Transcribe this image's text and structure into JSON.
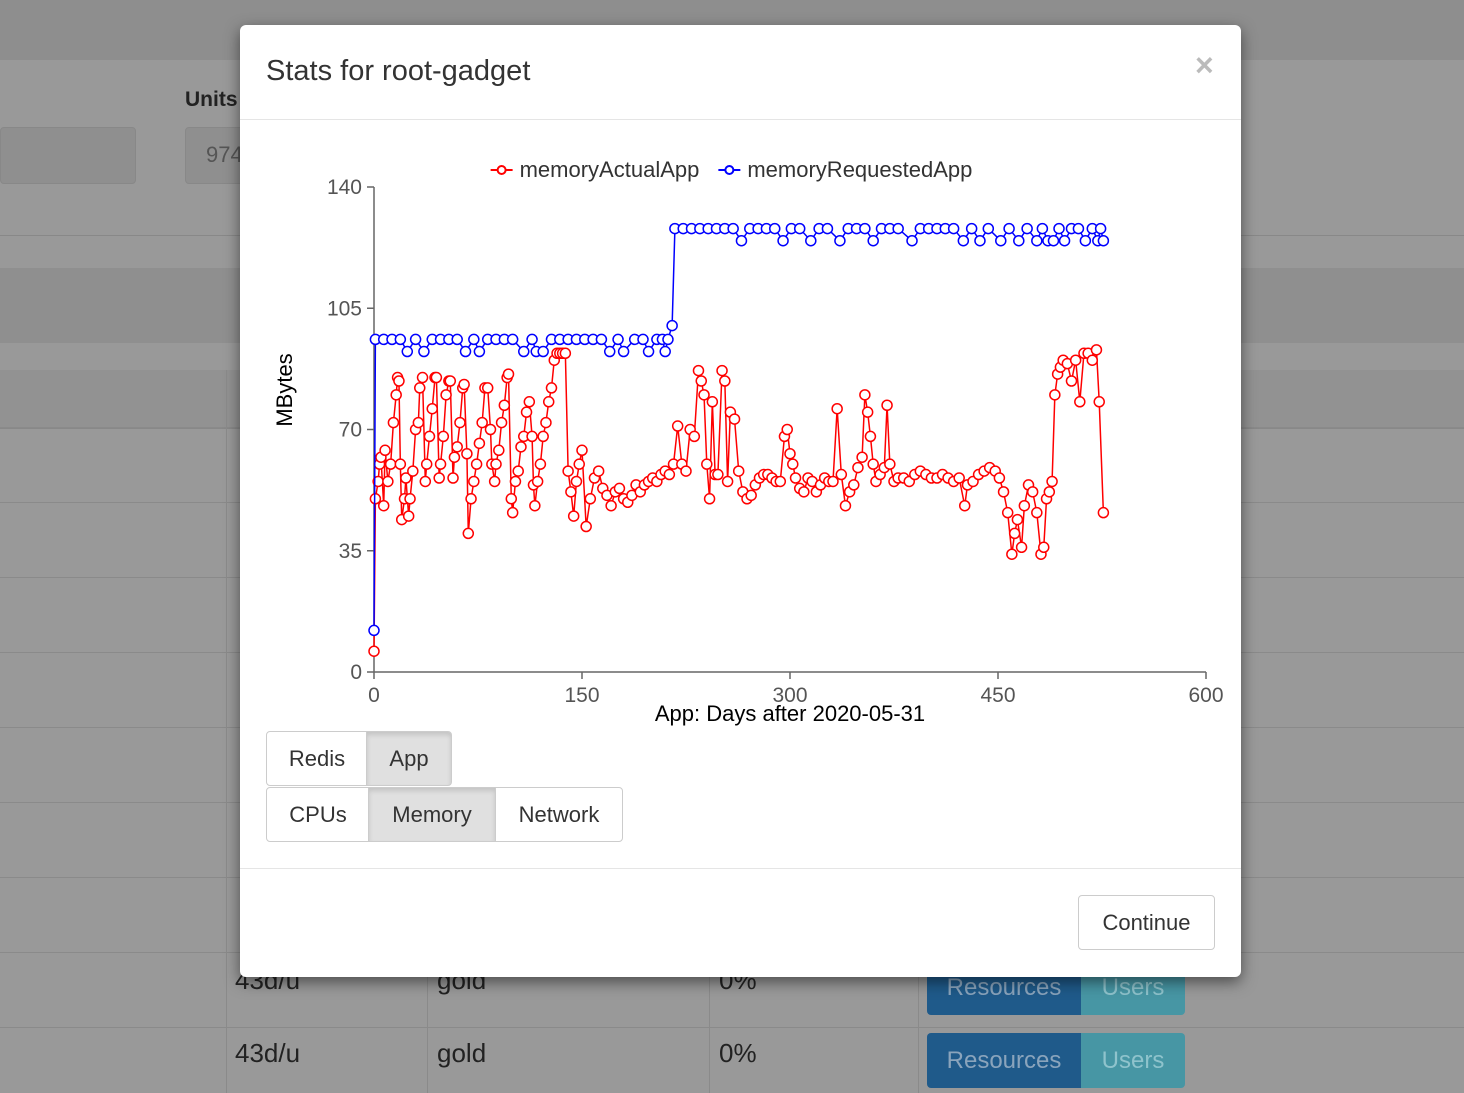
{
  "background": {
    "units_label": "Units",
    "units_value": "974",
    "rows": [
      [
        "43d/u",
        "gold",
        "0%",
        "Resources",
        "Users"
      ],
      [
        "43d/u",
        "gold",
        "0%",
        "Resources",
        "Users"
      ]
    ]
  },
  "modal": {
    "title": "Stats for root-gadget",
    "close": "×",
    "source_buttons": [
      "Redis",
      "App"
    ],
    "active_source": 1,
    "metric_buttons": [
      "CPUs",
      "Memory",
      "Network"
    ],
    "active_metric": 1,
    "continue": "Continue"
  },
  "chart_data": {
    "type": "line",
    "xlabel": "App: Days after 2020-05-31",
    "ylabel": "MBytes",
    "xlim": [
      0,
      600
    ],
    "xticks": [
      0,
      150,
      300,
      450,
      600
    ],
    "ylim": [
      0,
      140
    ],
    "yticks": [
      0,
      35,
      70,
      105,
      140
    ],
    "series": [
      {
        "name": "memoryActualApp",
        "color": "#ff0000",
        "x": [
          0,
          1,
          3,
          4,
          5,
          7,
          8,
          10,
          12,
          14,
          16,
          17,
          18,
          19,
          20,
          22,
          23,
          25,
          26,
          28,
          30,
          32,
          33,
          35,
          37,
          38,
          40,
          42,
          44,
          45,
          47,
          48,
          50,
          52,
          54,
          55,
          57,
          58,
          60,
          62,
          64,
          65,
          67,
          68,
          70,
          72,
          74,
          76,
          78,
          80,
          82,
          84,
          85,
          87,
          88,
          90,
          92,
          94,
          96,
          97,
          99,
          100,
          102,
          104,
          106,
          108,
          110,
          112,
          114,
          115,
          116,
          118,
          120,
          122,
          124,
          126,
          128,
          130,
          132,
          134,
          136,
          138,
          140,
          142,
          144,
          146,
          148,
          150,
          153,
          156,
          159,
          162,
          165,
          168,
          171,
          174,
          177,
          180,
          183,
          186,
          189,
          192,
          195,
          198,
          201,
          204,
          207,
          210,
          213,
          216,
          219,
          222,
          225,
          228,
          231,
          234,
          236,
          238,
          240,
          242,
          244,
          246,
          248,
          251,
          253,
          255,
          257,
          260,
          263,
          266,
          269,
          272,
          275,
          278,
          281,
          284,
          287,
          290,
          293,
          296,
          298,
          300,
          302,
          304,
          307,
          310,
          313,
          316,
          319,
          322,
          325,
          328,
          331,
          334,
          337,
          340,
          343,
          346,
          349,
          352,
          354,
          356,
          358,
          360,
          362,
          365,
          368,
          370,
          372,
          375,
          378,
          382,
          386,
          390,
          394,
          398,
          402,
          406,
          410,
          414,
          418,
          422,
          426,
          428,
          432,
          436,
          440,
          444,
          448,
          451,
          454,
          457,
          460,
          462,
          464,
          467,
          469,
          472,
          475,
          478,
          481,
          483,
          485,
          487,
          489,
          491,
          493,
          495,
          497,
          500,
          503,
          506,
          509,
          512,
          515,
          518,
          521,
          523,
          526
        ],
        "values": [
          6,
          50,
          55,
          60,
          62,
          48,
          64,
          55,
          60,
          72,
          80,
          85,
          84,
          60,
          44,
          50,
          56,
          45,
          50,
          58,
          70,
          72,
          82,
          85,
          55,
          60,
          68,
          76,
          85,
          85,
          56,
          60,
          68,
          80,
          84,
          84,
          56,
          62,
          65,
          72,
          82,
          83,
          63,
          40,
          50,
          55,
          60,
          66,
          72,
          82,
          82,
          70,
          60,
          55,
          60,
          64,
          72,
          77,
          85,
          86,
          50,
          46,
          55,
          58,
          65,
          68,
          75,
          78,
          68,
          54,
          48,
          55,
          60,
          68,
          72,
          78,
          82,
          90,
          92,
          92,
          92,
          92,
          58,
          52,
          45,
          55,
          60,
          64,
          42,
          50,
          56,
          58,
          53,
          51,
          48,
          52,
          53,
          50,
          49,
          51,
          54,
          52,
          54,
          55,
          56,
          55,
          57,
          58,
          57,
          60,
          71,
          60,
          58,
          70,
          68,
          87,
          84,
          80,
          60,
          50,
          78,
          57,
          57,
          87,
          84,
          55,
          75,
          73,
          58,
          52,
          50,
          51,
          54,
          56,
          57,
          57,
          56,
          55,
          55,
          68,
          70,
          63,
          60,
          56,
          53,
          52,
          56,
          55,
          52,
          54,
          56,
          55,
          55,
          76,
          57,
          48,
          52,
          54,
          59,
          62,
          80,
          75,
          68,
          60,
          55,
          57,
          59,
          77,
          60,
          55,
          56,
          56,
          55,
          57,
          58,
          57,
          56,
          56,
          57,
          56,
          55,
          56,
          48,
          54,
          55,
          57,
          58,
          59,
          58,
          56,
          52,
          46,
          34,
          40,
          44,
          36,
          48,
          54,
          52,
          46,
          34,
          36,
          50,
          52,
          55,
          80,
          86,
          88,
          90,
          89,
          84,
          90,
          78,
          92,
          92,
          90,
          93,
          78,
          46
        ]
      },
      {
        "name": "memoryRequestedApp",
        "color": "#0000ff",
        "x": [
          0,
          1,
          7,
          13,
          19,
          24,
          30,
          36,
          42,
          48,
          54,
          60,
          66,
          72,
          76,
          82,
          88,
          94,
          100,
          108,
          114,
          117,
          122,
          128,
          134,
          140,
          146,
          152,
          158,
          164,
          170,
          176,
          180,
          188,
          194,
          198,
          204,
          208,
          210,
          212,
          215,
          217,
          223,
          229,
          235,
          241,
          247,
          253,
          259,
          265,
          271,
          277,
          283,
          289,
          295,
          301,
          307,
          315,
          321,
          327,
          336,
          342,
          348,
          354,
          360,
          366,
          372,
          378,
          388,
          394,
          400,
          406,
          412,
          418,
          425,
          431,
          437,
          443,
          452,
          458,
          465,
          471,
          478,
          482,
          486,
          490,
          494,
          498,
          503,
          508,
          513,
          518,
          522,
          524,
          526
        ],
        "values": [
          12,
          96,
          96,
          96,
          96,
          92.5,
          96,
          92.5,
          96,
          96,
          96,
          96,
          92.5,
          96,
          92.5,
          96,
          96,
          96,
          96,
          92.5,
          96,
          92.5,
          92.5,
          96,
          96,
          96,
          96,
          96,
          96,
          96,
          92.5,
          96,
          92.5,
          96,
          96,
          92.5,
          96,
          96,
          92.5,
          96,
          100,
          128,
          128,
          128,
          128,
          128,
          128,
          128,
          128,
          124.5,
          128,
          128,
          128,
          128,
          124.5,
          128,
          128,
          124.5,
          128,
          128,
          124.5,
          128,
          128,
          128,
          124.5,
          128,
          128,
          128,
          124.5,
          128,
          128,
          128,
          128,
          128,
          124.5,
          128,
          124.5,
          128,
          124.5,
          128,
          124.5,
          128,
          124.5,
          128,
          124.5,
          124.5,
          128,
          124.5,
          128,
          128,
          124.5,
          128,
          124.5,
          128,
          124.5
        ]
      }
    ]
  }
}
